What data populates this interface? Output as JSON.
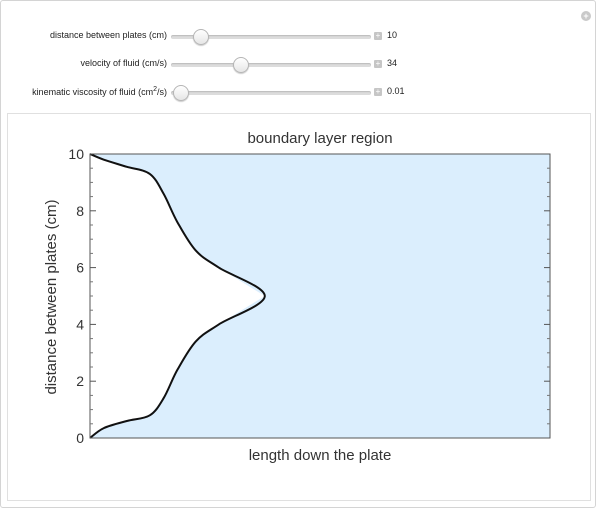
{
  "controls": [
    {
      "label": "distance between plates (cm)",
      "value": "10",
      "fraction": 0.15
    },
    {
      "label": "velocity of fluid (cm/s)",
      "value": "34",
      "fraction": 0.35
    },
    {
      "label_pre": "kinematic viscosity of fluid (cm",
      "label_sup": "2",
      "label_post": "/s)",
      "value": "0.01",
      "fraction": 0.05
    }
  ],
  "chart_data": {
    "type": "line",
    "title": "boundary layer region",
    "xlabel": "length down the plate",
    "ylabel": "distance between plates (cm)",
    "ylim": [
      0,
      10
    ],
    "xlim": [
      0,
      10
    ],
    "yticks": [
      "0",
      "2",
      "4",
      "6",
      "8",
      "10"
    ],
    "fill_color": "#dbeefd",
    "line_color": "#111111",
    "series": [
      {
        "x": [
          0.0,
          0.3,
          0.8,
          1.3,
          1.6,
          1.9,
          2.3,
          2.8,
          3.8,
          2.8,
          2.3,
          1.9,
          1.6,
          1.3,
          0.8,
          0.3,
          0.0
        ],
        "y": [
          0.0,
          0.35,
          0.6,
          0.8,
          1.4,
          2.4,
          3.4,
          4.0,
          5.0,
          6.0,
          6.6,
          7.6,
          8.6,
          9.3,
          9.55,
          9.8,
          10.0
        ]
      }
    ]
  }
}
